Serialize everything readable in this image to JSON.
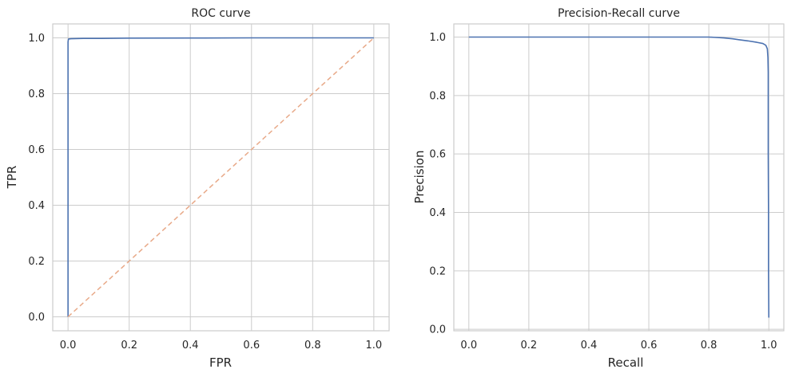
{
  "chart_data": [
    {
      "type": "line",
      "title": "ROC curve",
      "xlabel": "FPR",
      "ylabel": "TPR",
      "xlim": [
        -0.05,
        1.05
      ],
      "ylim": [
        -0.05,
        1.05
      ],
      "xticks": [
        "0.0",
        "0.2",
        "0.4",
        "0.6",
        "0.8",
        "1.0"
      ],
      "yticks": [
        "0.0",
        "0.2",
        "0.4",
        "0.6",
        "0.8",
        "1.0"
      ],
      "grid": true,
      "series": [
        {
          "color": "#4c72b0",
          "style": "solid",
          "x": [
            0.0,
            0.0,
            0.0,
            0.001,
            0.002,
            0.01,
            0.05,
            0.1,
            0.2,
            0.4,
            0.6,
            0.8,
            1.0
          ],
          "y": [
            0.0,
            0.95,
            0.985,
            0.993,
            0.996,
            0.997,
            0.998,
            0.998,
            0.999,
            0.9995,
            1.0,
            1.0,
            1.0
          ]
        },
        {
          "color": "#e8a988",
          "style": "dashed",
          "x": [
            0.0,
            1.0
          ],
          "y": [
            0.0,
            1.0
          ]
        }
      ]
    },
    {
      "type": "line",
      "title": "Precision-Recall curve",
      "xlabel": "Recall",
      "ylabel": "Precision",
      "xlim": [
        -0.05,
        1.05
      ],
      "ylim": [
        -0.005,
        1.045
      ],
      "xticks": [
        "0.0",
        "0.2",
        "0.4",
        "0.6",
        "0.8",
        "1.0"
      ],
      "yticks": [
        "0.0",
        "0.2",
        "0.4",
        "0.6",
        "0.8",
        "1.0"
      ],
      "grid": true,
      "series": [
        {
          "color": "#4c72b0",
          "style": "solid",
          "x": [
            0.0,
            0.2,
            0.4,
            0.6,
            0.8,
            0.82,
            0.85,
            0.88,
            0.9,
            0.93,
            0.96,
            0.98,
            0.99,
            0.995,
            0.997,
            0.998,
            0.998,
            0.999,
            0.999,
            1.0
          ],
          "y": [
            1.0,
            1.0,
            1.0,
            1.0,
            1.0,
            0.999,
            0.997,
            0.994,
            0.991,
            0.987,
            0.982,
            0.978,
            0.972,
            0.96,
            0.93,
            0.88,
            0.6,
            0.4,
            0.2,
            0.04
          ]
        }
      ]
    }
  ]
}
